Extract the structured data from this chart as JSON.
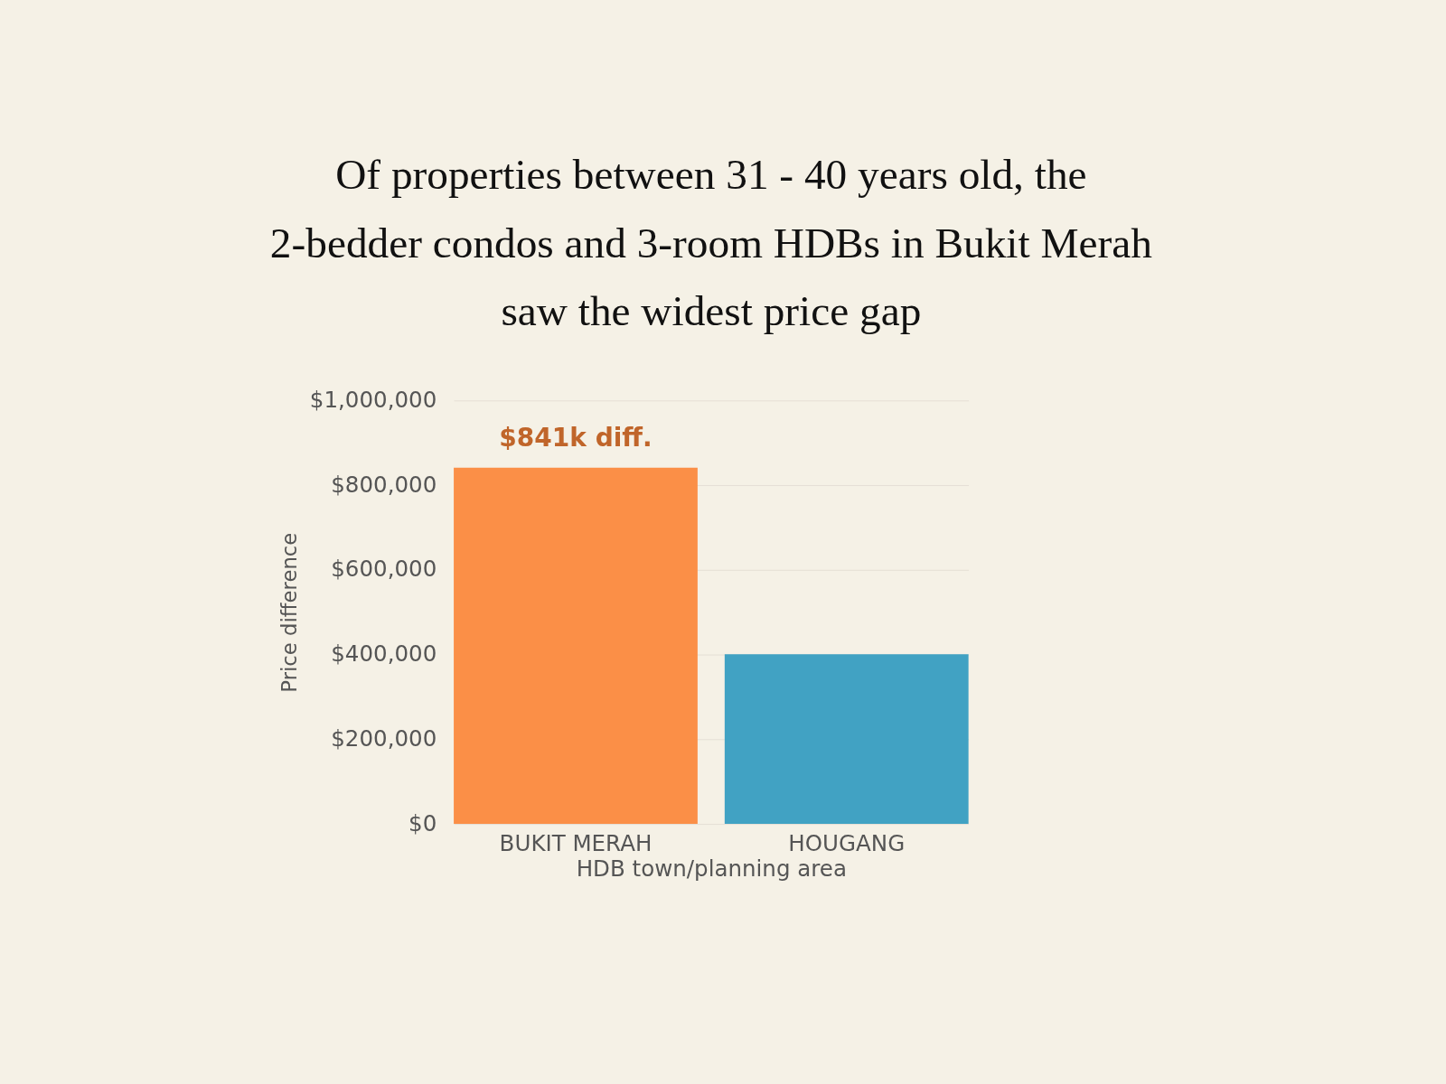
{
  "chart_data": {
    "type": "bar",
    "title": "Of properties between 31 - 40 years old, the 2-bedder condos and 3-room HDBs in Bukit Merah saw the widest price gap",
    "xlabel": "HDB town/planning area",
    "ylabel": "Price difference",
    "categories": [
      "BUKIT MERAH",
      "HOUGANG"
    ],
    "values": [
      841000,
      401000
    ],
    "colors": [
      "#fb8f47",
      "#41a2c3"
    ],
    "value_labels": [
      "$841k diff.",
      null
    ],
    "ylim": [
      0,
      1000000
    ],
    "yticks": [
      {
        "value": 0,
        "label": "$0"
      },
      {
        "value": 200000,
        "label": "$200,000"
      },
      {
        "value": 400000,
        "label": "$400,000"
      },
      {
        "value": 600000,
        "label": "$600,000"
      },
      {
        "value": 800000,
        "label": "$800,000"
      },
      {
        "value": 1000000,
        "label": "$1,000,000"
      }
    ],
    "grid": "y"
  }
}
